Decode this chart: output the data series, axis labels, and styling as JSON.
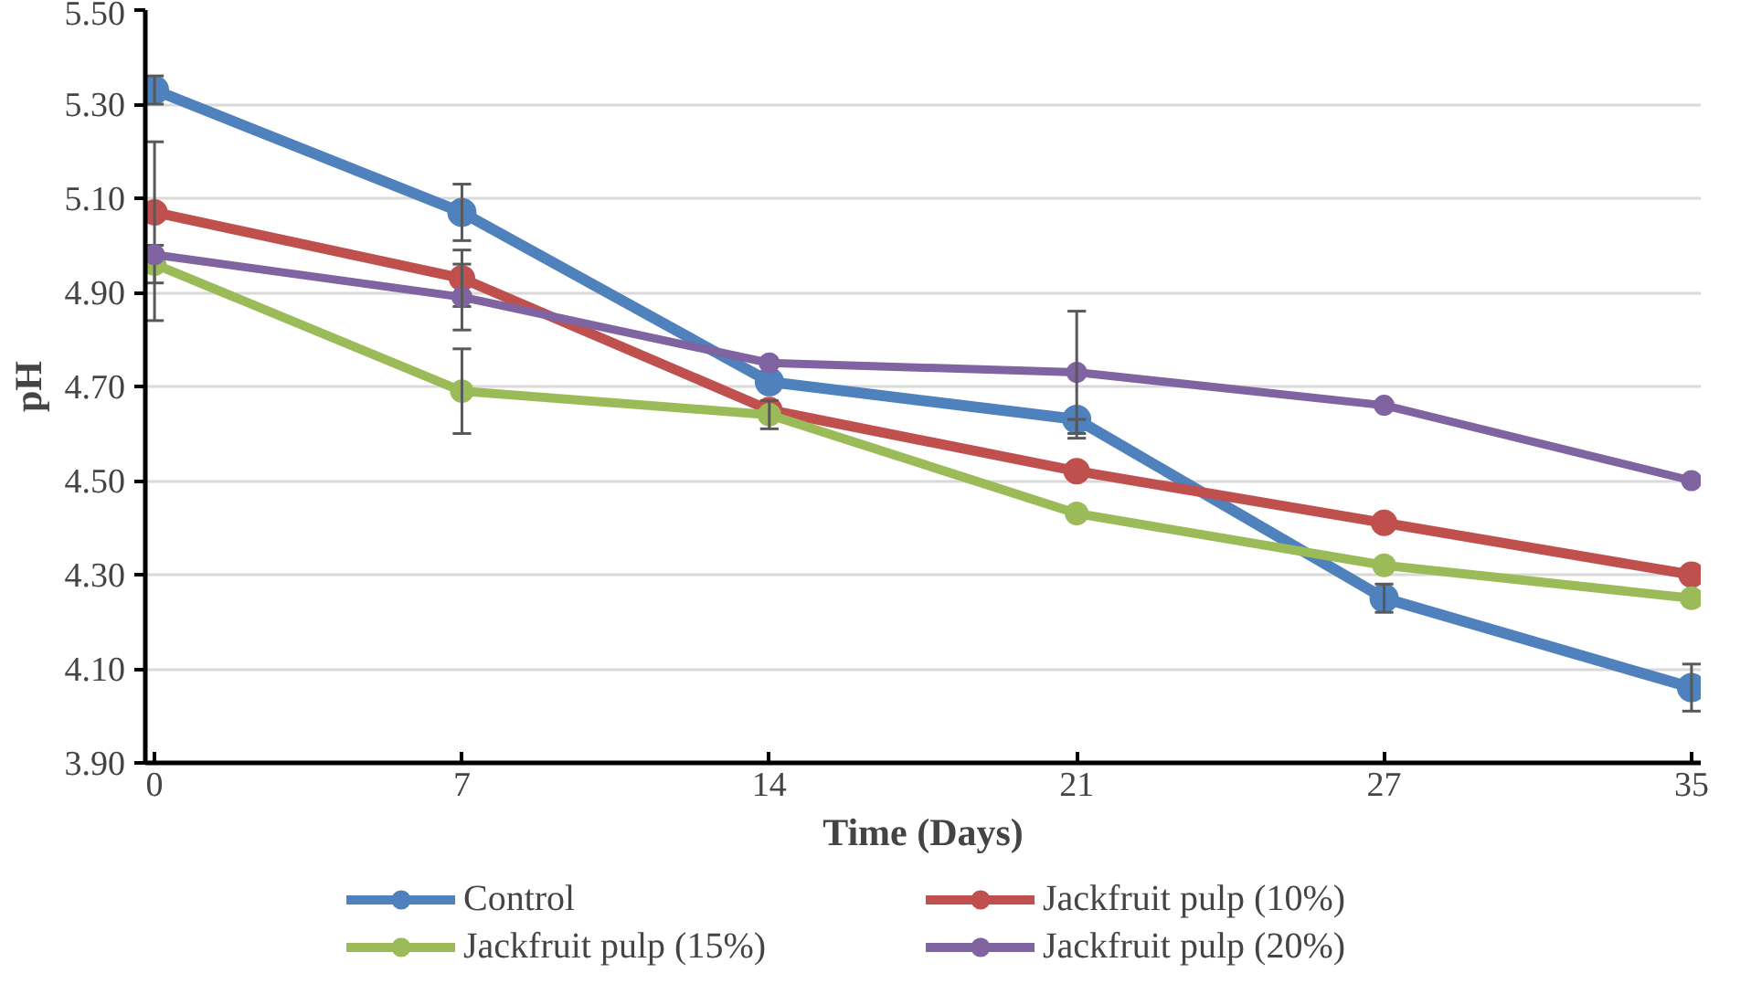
{
  "chart_data": {
    "type": "line",
    "xlabel": "Time (Days)",
    "ylabel": "pH",
    "categories": [
      "0",
      "7",
      "14",
      "21",
      "27",
      "35"
    ],
    "ylim": [
      3.9,
      5.5
    ],
    "yticks": [
      {
        "value": 3.9,
        "label": "3.90"
      },
      {
        "value": 4.1,
        "label": "4.10"
      },
      {
        "value": 4.3,
        "label": "4.30"
      },
      {
        "value": 4.5,
        "label": "4.50"
      },
      {
        "value": 4.7,
        "label": "4.70"
      },
      {
        "value": 4.9,
        "label": "4.90"
      },
      {
        "value": 5.1,
        "label": "5.10"
      },
      {
        "value": 5.3,
        "label": "5.30"
      },
      {
        "value": 5.5,
        "label": "5.50"
      }
    ],
    "grid": "y",
    "legend": "bottom",
    "marker": "circle",
    "line_style": "solid",
    "series": [
      {
        "name": "Control",
        "color": "#4f81bd",
        "values": [
          5.33,
          5.07,
          4.71,
          4.63,
          4.25,
          4.06
        ],
        "errors": [
          0.03,
          0.06,
          null,
          [
            4.59,
            4.63
          ],
          0.03,
          0.05
        ]
      },
      {
        "name": "Jackfruit pulp (10%)",
        "color": "#c0504d",
        "values": [
          5.07,
          4.93,
          4.65,
          4.52,
          4.41,
          4.3
        ],
        "errors": [
          [
            4.84,
            5.22
          ],
          0.06,
          null,
          null,
          null,
          null
        ]
      },
      {
        "name": "Jackfruit pulp (15%)",
        "color": "#9bbb59",
        "values": [
          4.96,
          4.69,
          4.64,
          4.43,
          4.32,
          4.25
        ],
        "errors": [
          0.04,
          0.09,
          0.03,
          null,
          null,
          null
        ]
      },
      {
        "name": "Jackfruit pulp (20%)",
        "color": "#8064a2",
        "values": [
          4.98,
          4.89,
          4.75,
          4.73,
          4.66,
          4.5
        ],
        "errors": [
          null,
          0.07,
          null,
          0.13,
          null,
          null
        ]
      }
    ]
  }
}
